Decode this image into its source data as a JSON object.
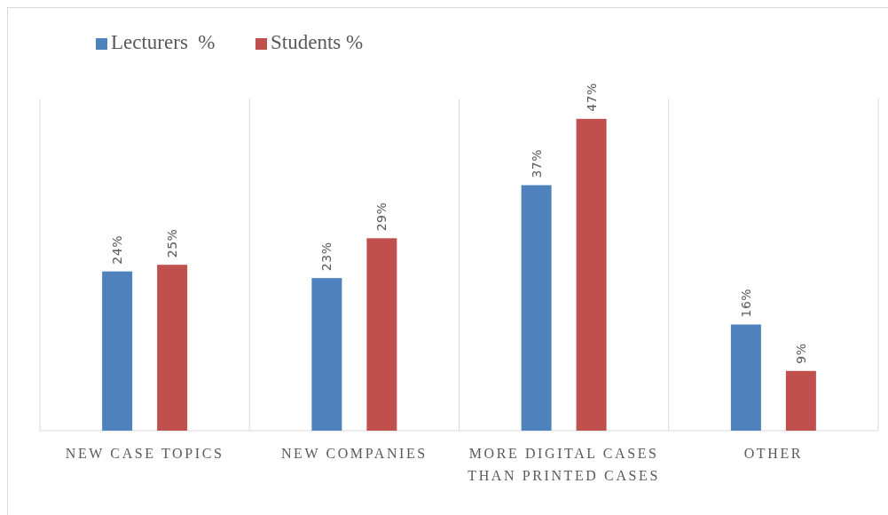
{
  "chart_data": {
    "type": "bar",
    "categories": [
      "NEW CASE TOPICS",
      "NEW COMPANIES",
      "MORE DIGITAL CASES THAN PRINTED CASES",
      "OTHER"
    ],
    "series": [
      {
        "name": "Lecturers  %",
        "color": "#4f81bd",
        "values": [
          24,
          23,
          37,
          16
        ],
        "value_labels": [
          "24%",
          "23%",
          "37%",
          "16%"
        ]
      },
      {
        "name": "Students %",
        "color": "#c0504d",
        "values": [
          25,
          29,
          47,
          9
        ],
        "value_labels": [
          "25%",
          "29%",
          "47%",
          "9%"
        ]
      }
    ],
    "grid": "x",
    "legend": "top left"
  }
}
